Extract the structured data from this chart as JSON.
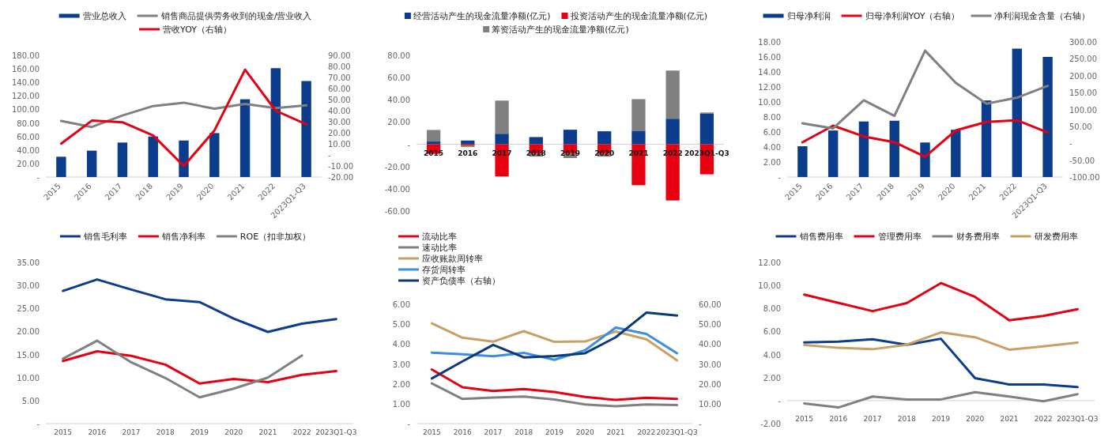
{
  "chart_data": [
    {
      "type": "bar",
      "categories": [
        "2015",
        "2016",
        "2017",
        "2018",
        "2019",
        "2020",
        "2021",
        "2022",
        "2023Q1-Q3"
      ],
      "legend": "top",
      "grid": false,
      "ylim": [
        0,
        180
      ],
      "yticks": [
        {
          "value": 0,
          "label": "-"
        },
        {
          "value": 20,
          "label": "20.00"
        },
        {
          "value": 40,
          "label": "40.00"
        },
        {
          "value": 60,
          "label": "60.00"
        },
        {
          "value": 80,
          "label": "80.00"
        },
        {
          "value": 100,
          "label": "100.00"
        },
        {
          "value": 120,
          "label": "120.00"
        },
        {
          "value": 140,
          "label": "140.00"
        },
        {
          "value": 160,
          "label": "160.00"
        },
        {
          "value": 180,
          "label": "180.00"
        }
      ],
      "y2lim": [
        -20,
        90
      ],
      "y2ticks": [
        {
          "value": -20,
          "label": "-20.00"
        },
        {
          "value": -10,
          "label": "-10.00"
        },
        {
          "value": 0,
          "label": "-"
        },
        {
          "value": 10,
          "label": "10.00"
        },
        {
          "value": 20,
          "label": "20.00"
        },
        {
          "value": 30,
          "label": "30.00"
        },
        {
          "value": 40,
          "label": "40.00"
        },
        {
          "value": 50,
          "label": "50.00"
        },
        {
          "value": 60,
          "label": "60.00"
        },
        {
          "value": 70,
          "label": "70.00"
        },
        {
          "value": 80,
          "label": "80.00"
        },
        {
          "value": 90,
          "label": "90.00"
        }
      ],
      "series": [
        {
          "name": "营业总收入",
          "type": "bar",
          "color": "#0b3d8c",
          "values": [
            30,
            39,
            51,
            60,
            54,
            65,
            115,
            161,
            142
          ]
        },
        {
          "name": "销售商品提供劳务收到的现金/营业收入",
          "type": "line",
          "color": "#808080",
          "values": [
            83,
            74,
            91,
            105,
            110,
            101,
            108,
            102,
            106
          ]
        },
        {
          "name": "营收YOY（右轴）",
          "type": "line",
          "axis": "y2",
          "color": "#e60012",
          "values": [
            10.2,
            31,
            29.5,
            17.6,
            -10,
            22,
            77,
            40,
            27.6
          ]
        }
      ]
    },
    {
      "type": "bar",
      "stacked": true,
      "categories": [
        "2015",
        "2016",
        "2017",
        "2018",
        "2019",
        "2020",
        "2021",
        "2022",
        "2023Q1-Q3"
      ],
      "legend": "top",
      "grid": false,
      "ylim": [
        -60,
        80
      ],
      "yticks": [
        {
          "value": -60,
          "label": "-60.00"
        },
        {
          "value": -40,
          "label": "-40.00"
        },
        {
          "value": -20,
          "label": "-20.00"
        },
        {
          "value": 0,
          "label": "-"
        },
        {
          "value": 20,
          "label": "20.00"
        },
        {
          "value": 40,
          "label": "40.00"
        },
        {
          "value": 60,
          "label": "60.00"
        },
        {
          "value": 80,
          "label": "80.00"
        }
      ],
      "series": [
        {
          "name": "经营活动产生的现金流量净额(亿元)",
          "color": "#0b3d8c",
          "values": [
            2.5,
            3.4,
            9.5,
            6.5,
            13.1,
            11.7,
            12.2,
            23,
            27.5
          ]
        },
        {
          "name": "投资活动产生的现金流量净额(亿元)",
          "color": "#e60012",
          "values": [
            -8.6,
            -1.2,
            -28.9,
            -8.6,
            -8.6,
            -8.6,
            -36.8,
            -50.5,
            -27
          ]
        },
        {
          "name": "筹资活动产生的现金流量净额(亿元)",
          "color": "#808080",
          "values": [
            10.4,
            -1.3,
            29.8,
            -2.5,
            -3.8,
            -2.5,
            28.4,
            43.3,
            1.1
          ]
        }
      ]
    },
    {
      "type": "bar",
      "categories": [
        "2015",
        "2016",
        "2017",
        "2018",
        "2019",
        "2020",
        "2021",
        "2022",
        "2023Q1-Q3"
      ],
      "legend": "top",
      "grid": false,
      "ylim": [
        0,
        18
      ],
      "yticks": [
        {
          "value": 0,
          "label": "-"
        },
        {
          "value": 2,
          "label": "2.00"
        },
        {
          "value": 4,
          "label": "4.00"
        },
        {
          "value": 6,
          "label": "6.00"
        },
        {
          "value": 8,
          "label": "8.00"
        },
        {
          "value": 10,
          "label": "10.00"
        },
        {
          "value": 12,
          "label": "12.00"
        },
        {
          "value": 14,
          "label": "14.00"
        },
        {
          "value": 16,
          "label": "16.00"
        },
        {
          "value": 18,
          "label": "18.00"
        }
      ],
      "y2lim": [
        -100,
        300
      ],
      "y2ticks": [
        {
          "value": -100,
          "label": "-100.00"
        },
        {
          "value": -50,
          "label": "-50.00"
        },
        {
          "value": 0,
          "label": "-"
        },
        {
          "value": 50,
          "label": "50.00"
        },
        {
          "value": 100,
          "label": "100.00"
        },
        {
          "value": 150,
          "label": "150.00"
        },
        {
          "value": 200,
          "label": "200.00"
        },
        {
          "value": 250,
          "label": "250.00"
        },
        {
          "value": 300,
          "label": "300.00"
        }
      ],
      "series": [
        {
          "name": "归母净利润",
          "type": "bar",
          "color": "#0b3d8c",
          "values": [
            4.1,
            6.2,
            7.4,
            7.5,
            4.6,
            6.3,
            10.2,
            17.1,
            16.0
          ]
        },
        {
          "name": "归母净利润YOY（右轴）",
          "type": "line",
          "axis": "y2",
          "color": "#e60012",
          "values": [
            3,
            52,
            20,
            3,
            -40,
            38,
            63,
            68,
            32
          ]
        },
        {
          "name": "净利润现金含量（右轴）",
          "type": "line",
          "axis": "y2",
          "color": "#808080",
          "values": [
            59,
            44,
            127,
            81,
            274,
            179,
            117,
            135,
            170
          ]
        }
      ]
    },
    {
      "type": "line",
      "categories": [
        "2015",
        "2016",
        "2017",
        "2018",
        "2019",
        "2020",
        "2021",
        "2022",
        "2023Q1-Q3"
      ],
      "legend": "top",
      "grid": false,
      "ylim": [
        0,
        35
      ],
      "yticks": [
        {
          "value": 0,
          "label": "-"
        },
        {
          "value": 5,
          "label": "5.00"
        },
        {
          "value": 10,
          "label": "10.00"
        },
        {
          "value": 15,
          "label": "15.00"
        },
        {
          "value": 20,
          "label": "20.00"
        },
        {
          "value": 25,
          "label": "25.00"
        },
        {
          "value": 30,
          "label": "30.00"
        },
        {
          "value": 35,
          "label": "35.00"
        }
      ],
      "series": [
        {
          "name": "销售毛利率",
          "color": "#0b3d8c",
          "values": [
            28.8,
            31.3,
            29.1,
            27.0,
            26.4,
            22.8,
            19.9,
            21.7,
            22.7
          ]
        },
        {
          "name": "销售净利率",
          "color": "#e60012",
          "values": [
            13.6,
            15.7,
            14.7,
            12.8,
            8.7,
            9.7,
            9.0,
            10.6,
            11.4
          ]
        },
        {
          "name": "ROE（扣非加权）",
          "color": "#808080",
          "values": [
            14.1,
            18.0,
            13.3,
            9.9,
            5.7,
            7.6,
            10.0,
            14.8,
            null
          ]
        }
      ]
    },
    {
      "type": "line",
      "categories": [
        "2015",
        "2016",
        "2017",
        "2018",
        "2019",
        "2020",
        "2021",
        "2022",
        "2023Q1-Q3"
      ],
      "legend": "top left",
      "grid": false,
      "ylim": [
        0,
        6
      ],
      "yticks": [
        {
          "value": 0,
          "label": "-"
        },
        {
          "value": 1,
          "label": "1.00"
        },
        {
          "value": 2,
          "label": "2.00"
        },
        {
          "value": 3,
          "label": "3.00"
        },
        {
          "value": 4,
          "label": "4.00"
        },
        {
          "value": 5,
          "label": "5.00"
        },
        {
          "value": 6,
          "label": "6.00"
        }
      ],
      "y2lim": [
        0,
        60
      ],
      "y2ticks": [
        {
          "value": 0,
          "label": "-"
        },
        {
          "value": 10,
          "label": "10.00"
        },
        {
          "value": 20,
          "label": "20.00"
        },
        {
          "value": 30,
          "label": "30.00"
        },
        {
          "value": 40,
          "label": "40.00"
        },
        {
          "value": 50,
          "label": "50.00"
        },
        {
          "value": 60,
          "label": "60.00"
        }
      ],
      "series": [
        {
          "name": "流动比率",
          "color": "#e60012",
          "values": [
            2.72,
            1.83,
            1.64,
            1.74,
            1.59,
            1.34,
            1.19,
            1.3,
            1.24
          ]
        },
        {
          "name": "速动比率",
          "color": "#808080",
          "values": [
            2.02,
            1.24,
            1.31,
            1.36,
            1.21,
            0.96,
            0.87,
            0.96,
            0.93
          ]
        },
        {
          "name": "应收账款周转率",
          "color": "#c9a063",
          "values": [
            5.04,
            4.32,
            4.12,
            4.65,
            4.11,
            4.13,
            4.63,
            4.24,
            3.18
          ]
        },
        {
          "name": "存货周转率",
          "color": "#3a8ee6",
          "values": [
            3.57,
            3.49,
            3.39,
            3.56,
            3.21,
            3.69,
            4.83,
            4.51,
            3.54
          ]
        },
        {
          "name": "资产负债率（右轴）",
          "axis": "y2",
          "color": "#0c3a78",
          "values": [
            22.7,
            31.3,
            39.6,
            33.3,
            34.0,
            35.4,
            43.4,
            55.8,
            54.3
          ]
        }
      ]
    },
    {
      "type": "line",
      "categories": [
        "2015",
        "2016",
        "2017",
        "2018",
        "2019",
        "2020",
        "2021",
        "2022",
        "2023Q1-Q3"
      ],
      "legend": "top",
      "grid": false,
      "ylim": [
        -2,
        12
      ],
      "yticks": [
        {
          "value": -2,
          "label": "-2.00"
        },
        {
          "value": 0,
          "label": "-"
        },
        {
          "value": 2,
          "label": "2.00"
        },
        {
          "value": 4,
          "label": "4.00"
        },
        {
          "value": 6,
          "label": "6.00"
        },
        {
          "value": 8,
          "label": "8.00"
        },
        {
          "value": 10,
          "label": "10.00"
        },
        {
          "value": 12,
          "label": "12.00"
        }
      ],
      "series": [
        {
          "name": "销售费用率",
          "color": "#0b3d8c",
          "values": [
            5.06,
            5.12,
            5.33,
            4.85,
            5.37,
            1.94,
            1.4,
            1.4,
            1.17
          ]
        },
        {
          "name": "管理费用率",
          "color": "#e60012",
          "values": [
            9.2,
            8.48,
            7.77,
            8.46,
            10.2,
            9.0,
            6.98,
            7.35,
            7.94
          ]
        },
        {
          "name": "财务费用率",
          "color": "#808080",
          "values": [
            -0.25,
            -0.6,
            0.35,
            0.1,
            0.1,
            0.73,
            0.35,
            -0.06,
            0.56
          ]
        },
        {
          "name": "研发费用率",
          "color": "#c9a063",
          "values": [
            4.83,
            4.58,
            4.46,
            4.85,
            5.92,
            5.5,
            4.42,
            4.71,
            5.04
          ]
        }
      ]
    }
  ]
}
